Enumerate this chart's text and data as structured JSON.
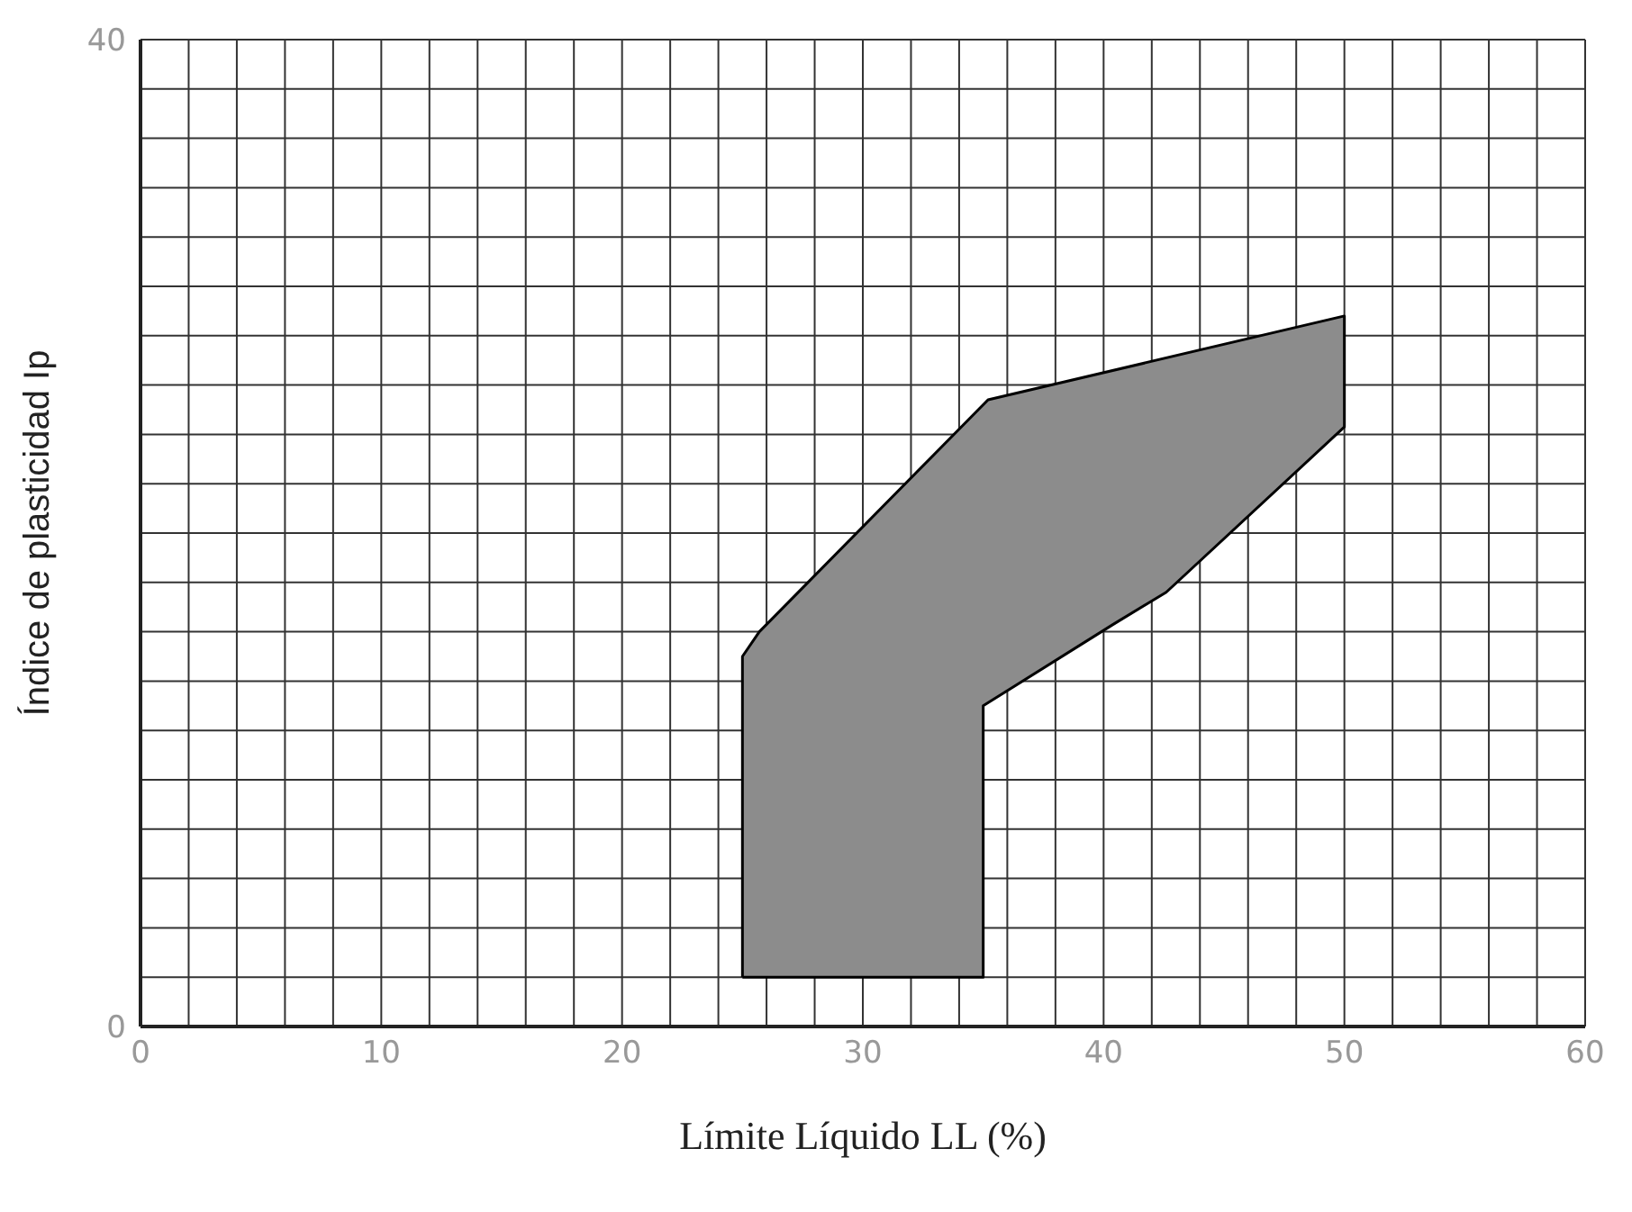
{
  "chart_data": {
    "type": "area",
    "xlabel": "Límite Líquido  LL (%)",
    "ylabel": "Índice de plasticidad Ip",
    "xlim": [
      0,
      60
    ],
    "ylim": [
      0,
      40
    ],
    "xticks": [
      0,
      {
        "value": 2,
        "label": null
      },
      {
        "value": 4,
        "label": null
      },
      {
        "value": 6,
        "label": null
      },
      {
        "value": 8,
        "label": null
      },
      10,
      {
        "value": 12,
        "label": null
      },
      {
        "value": 14,
        "label": null
      },
      {
        "value": 16,
        "label": null
      },
      {
        "value": 18,
        "label": null
      },
      20,
      {
        "value": 22,
        "label": null
      },
      {
        "value": 24,
        "label": null
      },
      {
        "value": 26,
        "label": null
      },
      {
        "value": 28,
        "label": null
      },
      30,
      {
        "value": 32,
        "label": null
      },
      {
        "value": 34,
        "label": null
      },
      {
        "value": 36,
        "label": null
      },
      {
        "value": 38,
        "label": null
      },
      40,
      {
        "value": 42,
        "label": null
      },
      {
        "value": 44,
        "label": null
      },
      {
        "value": 46,
        "label": null
      },
      {
        "value": 48,
        "label": null
      },
      50,
      {
        "value": 52,
        "label": null
      },
      {
        "value": 54,
        "label": null
      },
      {
        "value": 56,
        "label": null
      },
      {
        "value": 58,
        "label": null
      },
      60
    ],
    "yticks": [
      0,
      {
        "value": 2,
        "label": null
      },
      {
        "value": 4,
        "label": null
      },
      {
        "value": 6,
        "label": null
      },
      {
        "value": 8,
        "label": null
      },
      {
        "value": 10,
        "label": null
      },
      {
        "value": 12,
        "label": null
      },
      {
        "value": 14,
        "label": null
      },
      {
        "value": 16,
        "label": null
      },
      {
        "value": 18,
        "label": null
      },
      {
        "value": 20,
        "label": null
      },
      {
        "value": 22,
        "label": null
      },
      {
        "value": 24,
        "label": null
      },
      {
        "value": 26,
        "label": null
      },
      {
        "value": 28,
        "label": null
      },
      {
        "value": 30,
        "label": null
      },
      {
        "value": 32,
        "label": null
      },
      {
        "value": 34,
        "label": null
      },
      {
        "value": 36,
        "label": null
      },
      {
        "value": 38,
        "label": null
      },
      40
    ],
    "grid": true,
    "marker": "none",
    "series": [
      {
        "color": "#8c8c8c",
        "x": [
          25,
          35,
          35,
          40.4,
          42.6,
          50,
          50,
          35.2,
          25.7,
          25,
          25
        ],
        "values": [
          2,
          2,
          13,
          16.3,
          17.6,
          24.3,
          28.8,
          25.4,
          16,
          15,
          2
        ]
      }
    ]
  }
}
